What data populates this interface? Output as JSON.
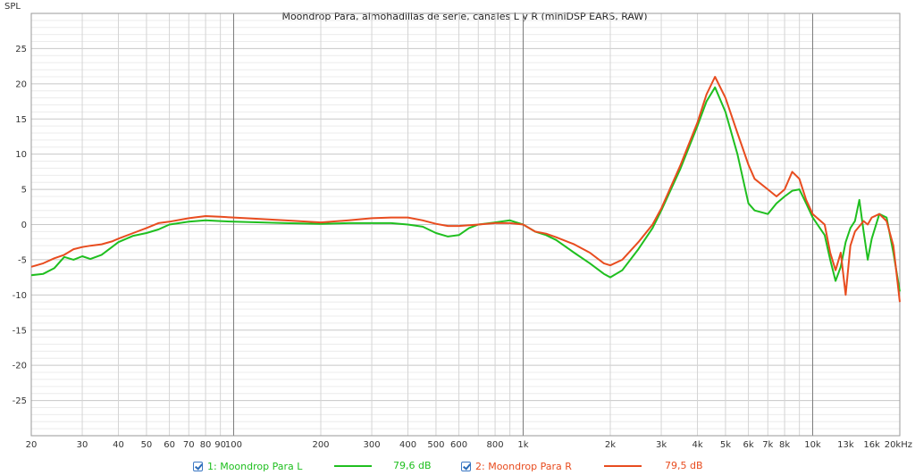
{
  "chart_data": {
    "type": "line",
    "title": "Moondrop Para, almohadillas de serie, canales L y R (miniDSP EARS, RAW)",
    "ylabel": "SPL",
    "xlabel": "",
    "x_scale": "log",
    "xlim": [
      20,
      20000
    ],
    "ylim": [
      -30,
      30
    ],
    "grid": true,
    "y_ticks": [
      25,
      20,
      15,
      10,
      5,
      0,
      -5,
      -10,
      -15,
      -20,
      -25
    ],
    "x_tick_labels": [
      {
        "v": 20,
        "t": "20"
      },
      {
        "v": 30,
        "t": "30"
      },
      {
        "v": 40,
        "t": "40"
      },
      {
        "v": 50,
        "t": "50"
      },
      {
        "v": 60,
        "t": "60"
      },
      {
        "v": 70,
        "t": "70"
      },
      {
        "v": 80,
        "t": "80"
      },
      {
        "v": 90,
        "t": "90"
      },
      {
        "v": 100,
        "t": "100"
      },
      {
        "v": 200,
        "t": "200"
      },
      {
        "v": 300,
        "t": "300"
      },
      {
        "v": 400,
        "t": "400"
      },
      {
        "v": 500,
        "t": "500"
      },
      {
        "v": 600,
        "t": "600"
      },
      {
        "v": 800,
        "t": "800"
      },
      {
        "v": 1000,
        "t": "1k"
      },
      {
        "v": 2000,
        "t": "2k"
      },
      {
        "v": 3000,
        "t": "3k"
      },
      {
        "v": 4000,
        "t": "4k"
      },
      {
        "v": 5000,
        "t": "5k"
      },
      {
        "v": 6000,
        "t": "6k"
      },
      {
        "v": 7000,
        "t": "7k"
      },
      {
        "v": 8000,
        "t": "8k"
      },
      {
        "v": 10000,
        "t": "10k"
      },
      {
        "v": 13000,
        "t": "13k"
      },
      {
        "v": 16000,
        "t": "16k"
      },
      {
        "v": 20000,
        "t": "20kHz"
      }
    ],
    "series": [
      {
        "name": "1: Moondrop Para L",
        "value_label": "79,6 dB",
        "color": "#1fbf1f",
        "points": [
          [
            20,
            -7.2
          ],
          [
            22,
            -7
          ],
          [
            24,
            -6.2
          ],
          [
            26,
            -4.6
          ],
          [
            28,
            -5
          ],
          [
            30,
            -4.5
          ],
          [
            32,
            -4.9
          ],
          [
            35,
            -4.3
          ],
          [
            38,
            -3.2
          ],
          [
            40,
            -2.5
          ],
          [
            45,
            -1.6
          ],
          [
            50,
            -1.2
          ],
          [
            55,
            -0.7
          ],
          [
            60,
            0
          ],
          [
            70,
            0.4
          ],
          [
            80,
            0.6
          ],
          [
            90,
            0.5
          ],
          [
            100,
            0.4
          ],
          [
            150,
            0.2
          ],
          [
            200,
            0.1
          ],
          [
            250,
            0.2
          ],
          [
            300,
            0.2
          ],
          [
            350,
            0.2
          ],
          [
            400,
            0
          ],
          [
            450,
            -0.3
          ],
          [
            500,
            -1.2
          ],
          [
            550,
            -1.7
          ],
          [
            600,
            -1.5
          ],
          [
            650,
            -0.5
          ],
          [
            700,
            0
          ],
          [
            800,
            0.3
          ],
          [
            900,
            0.6
          ],
          [
            1000,
            0
          ],
          [
            1100,
            -1
          ],
          [
            1200,
            -1.5
          ],
          [
            1300,
            -2.2
          ],
          [
            1500,
            -4
          ],
          [
            1700,
            -5.5
          ],
          [
            1900,
            -7
          ],
          [
            2000,
            -7.5
          ],
          [
            2200,
            -6.5
          ],
          [
            2500,
            -3.5
          ],
          [
            2800,
            -0.5
          ],
          [
            3000,
            2
          ],
          [
            3500,
            8
          ],
          [
            4000,
            14
          ],
          [
            4300,
            17.5
          ],
          [
            4600,
            19.5
          ],
          [
            5000,
            16
          ],
          [
            5500,
            10
          ],
          [
            6000,
            3
          ],
          [
            6300,
            2
          ],
          [
            7000,
            1.5
          ],
          [
            7500,
            3
          ],
          [
            8000,
            4
          ],
          [
            8500,
            4.8
          ],
          [
            9000,
            5
          ],
          [
            9500,
            3
          ],
          [
            10000,
            1
          ],
          [
            11000,
            -1.5
          ],
          [
            11500,
            -5
          ],
          [
            12000,
            -8
          ],
          [
            12500,
            -6
          ],
          [
            13000,
            -2.5
          ],
          [
            13500,
            -0.5
          ],
          [
            14000,
            0.5
          ],
          [
            14500,
            3.5
          ],
          [
            15000,
            -1
          ],
          [
            15500,
            -5
          ],
          [
            16000,
            -2
          ],
          [
            17000,
            1.5
          ],
          [
            18000,
            1
          ],
          [
            19000,
            -4
          ],
          [
            20000,
            -9.5
          ]
        ]
      },
      {
        "name": "2: Moondrop Para R",
        "value_label": "79,5 dB",
        "color": "#e84c1f",
        "points": [
          [
            20,
            -6
          ],
          [
            22,
            -5.5
          ],
          [
            24,
            -4.8
          ],
          [
            26,
            -4.3
          ],
          [
            28,
            -3.5
          ],
          [
            30,
            -3.2
          ],
          [
            32,
            -3
          ],
          [
            35,
            -2.8
          ],
          [
            38,
            -2.4
          ],
          [
            40,
            -2
          ],
          [
            45,
            -1.2
          ],
          [
            50,
            -0.5
          ],
          [
            55,
            0.2
          ],
          [
            60,
            0.4
          ],
          [
            70,
            0.9
          ],
          [
            80,
            1.2
          ],
          [
            90,
            1.1
          ],
          [
            100,
            1
          ],
          [
            150,
            0.6
          ],
          [
            200,
            0.3
          ],
          [
            250,
            0.6
          ],
          [
            300,
            0.9
          ],
          [
            350,
            1
          ],
          [
            400,
            1
          ],
          [
            450,
            0.6
          ],
          [
            500,
            0.1
          ],
          [
            550,
            -0.2
          ],
          [
            600,
            -0.2
          ],
          [
            700,
            0
          ],
          [
            800,
            0.2
          ],
          [
            900,
            0.2
          ],
          [
            1000,
            0
          ],
          [
            1100,
            -1
          ],
          [
            1200,
            -1.3
          ],
          [
            1300,
            -1.8
          ],
          [
            1500,
            -2.8
          ],
          [
            1700,
            -4
          ],
          [
            1900,
            -5.5
          ],
          [
            2000,
            -5.8
          ],
          [
            2200,
            -5
          ],
          [
            2500,
            -2.5
          ],
          [
            2800,
            0
          ],
          [
            3000,
            2.3
          ],
          [
            3500,
            8.5
          ],
          [
            4000,
            14.5
          ],
          [
            4300,
            18.5
          ],
          [
            4600,
            21
          ],
          [
            5000,
            18
          ],
          [
            5500,
            13
          ],
          [
            6000,
            8.5
          ],
          [
            6300,
            6.5
          ],
          [
            7000,
            5
          ],
          [
            7500,
            4
          ],
          [
            8000,
            5
          ],
          [
            8500,
            7.5
          ],
          [
            9000,
            6.5
          ],
          [
            9500,
            3.5
          ],
          [
            10000,
            1.5
          ],
          [
            11000,
            0
          ],
          [
            11500,
            -4
          ],
          [
            12000,
            -6.5
          ],
          [
            12500,
            -4
          ],
          [
            13000,
            -10
          ],
          [
            13500,
            -3
          ],
          [
            14000,
            -1
          ],
          [
            15000,
            0.5
          ],
          [
            15500,
            0
          ],
          [
            16000,
            1
          ],
          [
            17000,
            1.5
          ],
          [
            18000,
            0.5
          ],
          [
            19000,
            -3
          ],
          [
            20000,
            -11
          ]
        ]
      }
    ]
  }
}
